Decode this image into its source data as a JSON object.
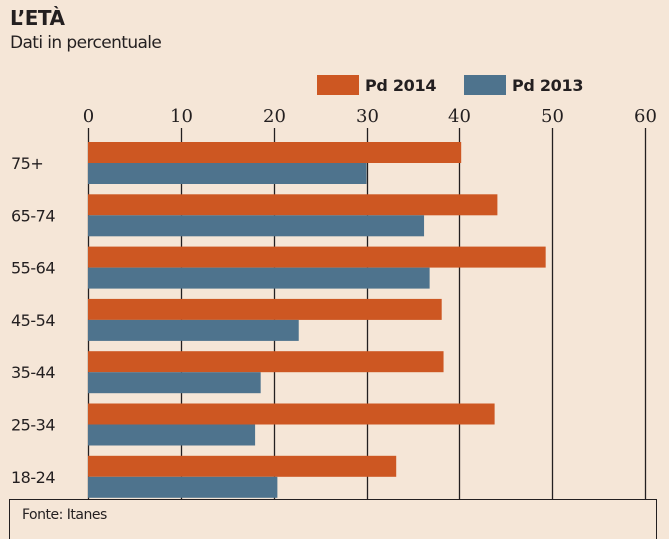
{
  "chart_data": {
    "type": "bar",
    "orientation": "horizontal",
    "title": "L’ETÀ",
    "subtitle": "Dati in percentuale",
    "categories": [
      "75+",
      "65-74",
      "55-64",
      "45-54",
      "35-44",
      "25-34",
      "18-24"
    ],
    "series": [
      {
        "name": "Pd 2014",
        "color": "#cd5722",
        "values": [
          40.2,
          44.1,
          49.3,
          38.1,
          38.3,
          43.8,
          33.2
        ]
      },
      {
        "name": "Pd 2013",
        "color": "#4e738d",
        "values": [
          30.0,
          36.2,
          36.8,
          22.7,
          18.6,
          18.0,
          20.4
        ]
      }
    ],
    "xlim": [
      0,
      60
    ],
    "xticks": [
      0,
      10,
      20,
      30,
      40,
      50,
      60
    ],
    "xlabel": "",
    "ylabel": "",
    "grid": true,
    "legend_position": "top-right",
    "source": "Fonte: Itanes"
  }
}
